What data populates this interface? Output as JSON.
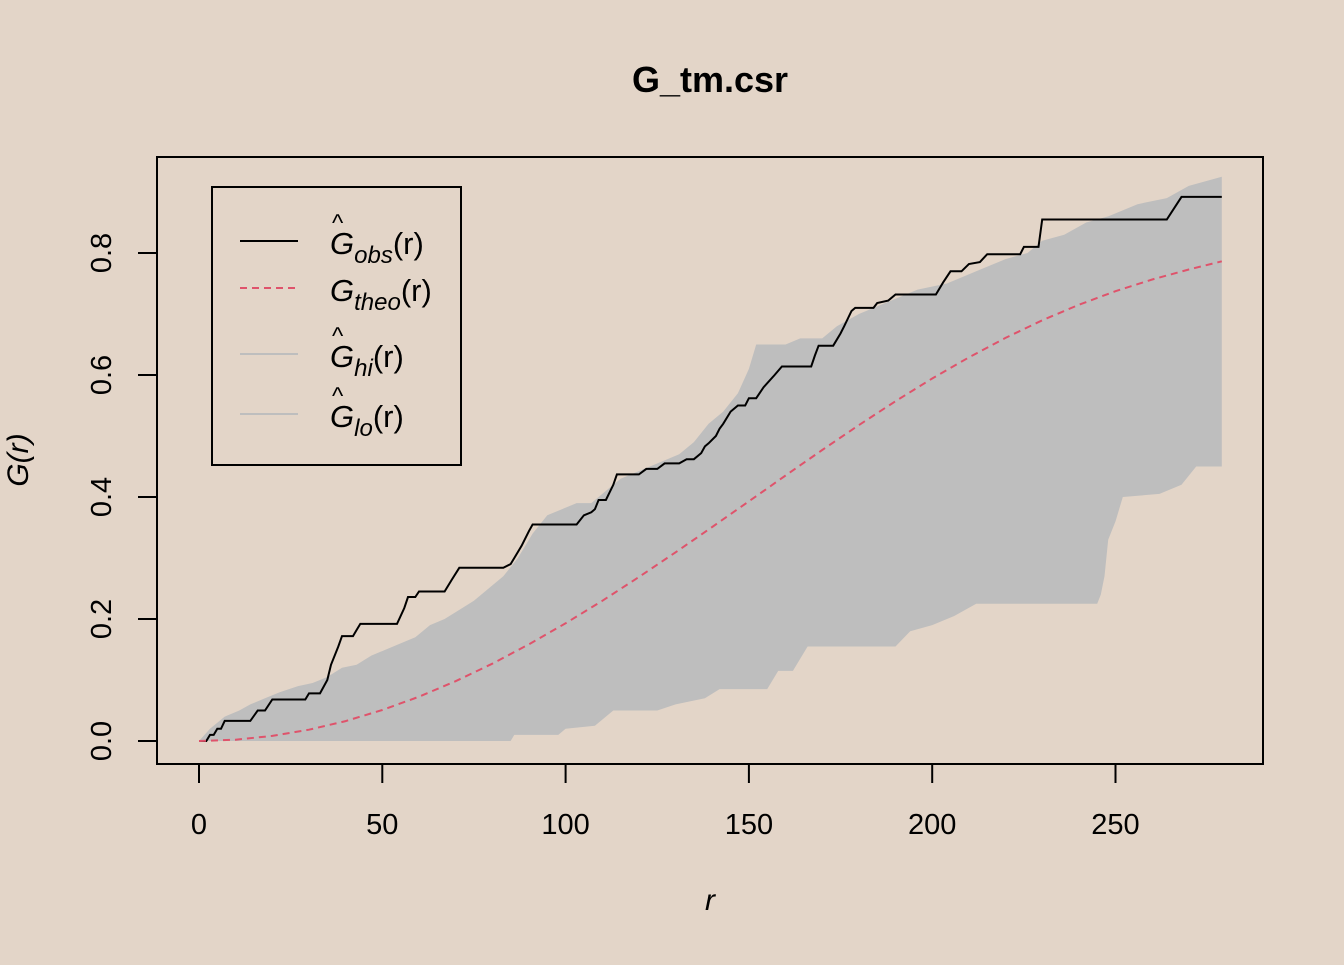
{
  "chart_data": {
    "type": "line",
    "title": "G_tm.csr",
    "xlabel": "r",
    "ylabel": "G(r)",
    "xlim": [
      0,
      279
    ],
    "ylim": [
      0,
      0.925
    ],
    "x_ticks": [
      "0",
      "50",
      "100",
      "150",
      "200",
      "250"
    ],
    "y_ticks": [
      "0.0",
      "0.2",
      "0.4",
      "0.6",
      "0.8"
    ],
    "legend_position": "top-left",
    "legend": [
      {
        "name": "Ĝobs(r)",
        "base": "G",
        "hat": true,
        "sub": "obs",
        "arg": "(r)",
        "color": "#000000",
        "dash": "solid"
      },
      {
        "name": "Gtheo(r)",
        "base": "G",
        "hat": false,
        "sub": "theo",
        "arg": "(r)",
        "color": "#df536b",
        "dash": "dashed"
      },
      {
        "name": "Ĝhi(r)",
        "base": "G",
        "hat": true,
        "sub": "hi",
        "arg": "(r)",
        "color": "#bebebe",
        "dash": "solid"
      },
      {
        "name": "Ĝlo(r)",
        "base": "G",
        "hat": true,
        "sub": "lo",
        "arg": "(r)",
        "color": "#bebebe",
        "dash": "solid"
      }
    ],
    "colors": {
      "obs": "#000000",
      "theo": "#df536b",
      "envelope": "#bebebe"
    },
    "series": [
      {
        "name": "obs",
        "points": [
          [
            0,
            0
          ],
          [
            2,
            0
          ],
          [
            3,
            0.01
          ],
          [
            4,
            0.01
          ],
          [
            5,
            0.02
          ],
          [
            6,
            0.02
          ],
          [
            7,
            0.033
          ],
          [
            14,
            0.033
          ],
          [
            16,
            0.05
          ],
          [
            18,
            0.05
          ],
          [
            20,
            0.068
          ],
          [
            29,
            0.068
          ],
          [
            30,
            0.078
          ],
          [
            33,
            0.078
          ],
          [
            35,
            0.1
          ],
          [
            36,
            0.125
          ],
          [
            38,
            0.155
          ],
          [
            39,
            0.172
          ],
          [
            42,
            0.172
          ],
          [
            43,
            0.182
          ],
          [
            44,
            0.192
          ],
          [
            54,
            0.192
          ],
          [
            56,
            0.218
          ],
          [
            57,
            0.236
          ],
          [
            59,
            0.236
          ],
          [
            60,
            0.245
          ],
          [
            67,
            0.245
          ],
          [
            69,
            0.265
          ],
          [
            71,
            0.284
          ],
          [
            83,
            0.284
          ],
          [
            85,
            0.29
          ],
          [
            86,
            0.3
          ],
          [
            88,
            0.32
          ],
          [
            90,
            0.344
          ],
          [
            91,
            0.355
          ],
          [
            103,
            0.355
          ],
          [
            105,
            0.37
          ],
          [
            107,
            0.375
          ],
          [
            108,
            0.38
          ],
          [
            109,
            0.395
          ],
          [
            111,
            0.395
          ],
          [
            113,
            0.42
          ],
          [
            114,
            0.437
          ],
          [
            120,
            0.437
          ],
          [
            122,
            0.446
          ],
          [
            125,
            0.446
          ],
          [
            127,
            0.455
          ],
          [
            131,
            0.455
          ],
          [
            133,
            0.462
          ],
          [
            135,
            0.462
          ],
          [
            137,
            0.472
          ],
          [
            138,
            0.483
          ],
          [
            139,
            0.488
          ],
          [
            141,
            0.5
          ],
          [
            142,
            0.512
          ],
          [
            143,
            0.52
          ],
          [
            145,
            0.54
          ],
          [
            147,
            0.55
          ],
          [
            149,
            0.55
          ],
          [
            150,
            0.562
          ],
          [
            152,
            0.562
          ],
          [
            154,
            0.58
          ],
          [
            157,
            0.6
          ],
          [
            159,
            0.614
          ],
          [
            167,
            0.614
          ],
          [
            168,
            0.632
          ],
          [
            169,
            0.648
          ],
          [
            173,
            0.648
          ],
          [
            175,
            0.668
          ],
          [
            176,
            0.68
          ],
          [
            178,
            0.705
          ],
          [
            179,
            0.71
          ],
          [
            184,
            0.71
          ],
          [
            185,
            0.718
          ],
          [
            188,
            0.722
          ],
          [
            190,
            0.732
          ],
          [
            201,
            0.732
          ],
          [
            203,
            0.752
          ],
          [
            205,
            0.77
          ],
          [
            208,
            0.77
          ],
          [
            210,
            0.782
          ],
          [
            213,
            0.785
          ],
          [
            215,
            0.798
          ],
          [
            224,
            0.798
          ],
          [
            225,
            0.81
          ],
          [
            229,
            0.81
          ],
          [
            230,
            0.855
          ],
          [
            264,
            0.855
          ],
          [
            268,
            0.892
          ],
          [
            279,
            0.892
          ]
        ]
      },
      {
        "name": "theo",
        "points": [
          [
            0,
            0
          ],
          [
            10,
            0.0021
          ],
          [
            20,
            0.0083
          ],
          [
            30,
            0.0185
          ],
          [
            40,
            0.0327
          ],
          [
            50,
            0.0508
          ],
          [
            60,
            0.0726
          ],
          [
            70,
            0.098
          ],
          [
            80,
            0.1267
          ],
          [
            90,
            0.1585
          ],
          [
            100,
            0.193
          ],
          [
            110,
            0.2299
          ],
          [
            120,
            0.2688
          ],
          [
            130,
            0.3093
          ],
          [
            140,
            0.3509
          ],
          [
            150,
            0.393
          ],
          [
            160,
            0.4353
          ],
          [
            170,
            0.477
          ],
          [
            180,
            0.5178
          ],
          [
            190,
            0.557
          ],
          [
            200,
            0.5942
          ],
          [
            210,
            0.6289
          ],
          [
            220,
            0.6608
          ],
          [
            230,
            0.6896
          ],
          [
            240,
            0.7151
          ],
          [
            250,
            0.7374
          ],
          [
            260,
            0.7566
          ],
          [
            270,
            0.7729
          ],
          [
            279,
            0.7864
          ]
        ]
      },
      {
        "name": "hi",
        "points": [
          [
            0,
            0
          ],
          [
            3,
            0.02
          ],
          [
            7,
            0.04
          ],
          [
            11,
            0.05
          ],
          [
            14,
            0.06
          ],
          [
            18,
            0.07
          ],
          [
            22,
            0.08
          ],
          [
            27,
            0.09
          ],
          [
            31,
            0.095
          ],
          [
            35,
            0.105
          ],
          [
            39,
            0.12
          ],
          [
            43,
            0.125
          ],
          [
            47,
            0.14
          ],
          [
            51,
            0.15
          ],
          [
            55,
            0.16
          ],
          [
            59,
            0.17
          ],
          [
            63,
            0.19
          ],
          [
            67,
            0.2
          ],
          [
            71,
            0.215
          ],
          [
            75,
            0.23
          ],
          [
            79,
            0.25
          ],
          [
            83,
            0.27
          ],
          [
            87,
            0.3
          ],
          [
            91,
            0.34
          ],
          [
            95,
            0.37
          ],
          [
            99,
            0.38
          ],
          [
            103,
            0.39
          ],
          [
            107,
            0.39
          ],
          [
            111,
            0.41
          ],
          [
            115,
            0.43
          ],
          [
            119,
            0.44
          ],
          [
            123,
            0.45
          ],
          [
            127,
            0.46
          ],
          [
            131,
            0.47
          ],
          [
            135,
            0.49
          ],
          [
            139,
            0.52
          ],
          [
            143,
            0.54
          ],
          [
            147,
            0.57
          ],
          [
            150,
            0.61
          ],
          [
            152,
            0.65
          ],
          [
            160,
            0.65
          ],
          [
            164,
            0.66
          ],
          [
            170,
            0.66
          ],
          [
            174,
            0.68
          ],
          [
            180,
            0.7
          ],
          [
            188,
            0.72
          ],
          [
            196,
            0.74
          ],
          [
            204,
            0.75
          ],
          [
            212,
            0.77
          ],
          [
            220,
            0.79
          ],
          [
            226,
            0.8
          ],
          [
            230,
            0.82
          ],
          [
            236,
            0.83
          ],
          [
            242,
            0.85
          ],
          [
            248,
            0.86
          ],
          [
            256,
            0.88
          ],
          [
            264,
            0.89
          ],
          [
            270,
            0.91
          ],
          [
            279,
            0.925
          ]
        ]
      },
      {
        "name": "lo",
        "points": [
          [
            0,
            0
          ],
          [
            85,
            0
          ],
          [
            86,
            0.01
          ],
          [
            98,
            0.01
          ],
          [
            100,
            0.02
          ],
          [
            108,
            0.025
          ],
          [
            113,
            0.05
          ],
          [
            125,
            0.05
          ],
          [
            130,
            0.06
          ],
          [
            138,
            0.07
          ],
          [
            142,
            0.085
          ],
          [
            155,
            0.085
          ],
          [
            158,
            0.115
          ],
          [
            162,
            0.115
          ],
          [
            166,
            0.155
          ],
          [
            190,
            0.155
          ],
          [
            194,
            0.18
          ],
          [
            200,
            0.19
          ],
          [
            206,
            0.205
          ],
          [
            212,
            0.225
          ],
          [
            245,
            0.225
          ],
          [
            246,
            0.24
          ],
          [
            247,
            0.27
          ],
          [
            248,
            0.33
          ],
          [
            250,
            0.36
          ],
          [
            252,
            0.4
          ],
          [
            262,
            0.405
          ],
          [
            268,
            0.42
          ],
          [
            272,
            0.45
          ],
          [
            279,
            0.45
          ]
        ]
      }
    ]
  }
}
